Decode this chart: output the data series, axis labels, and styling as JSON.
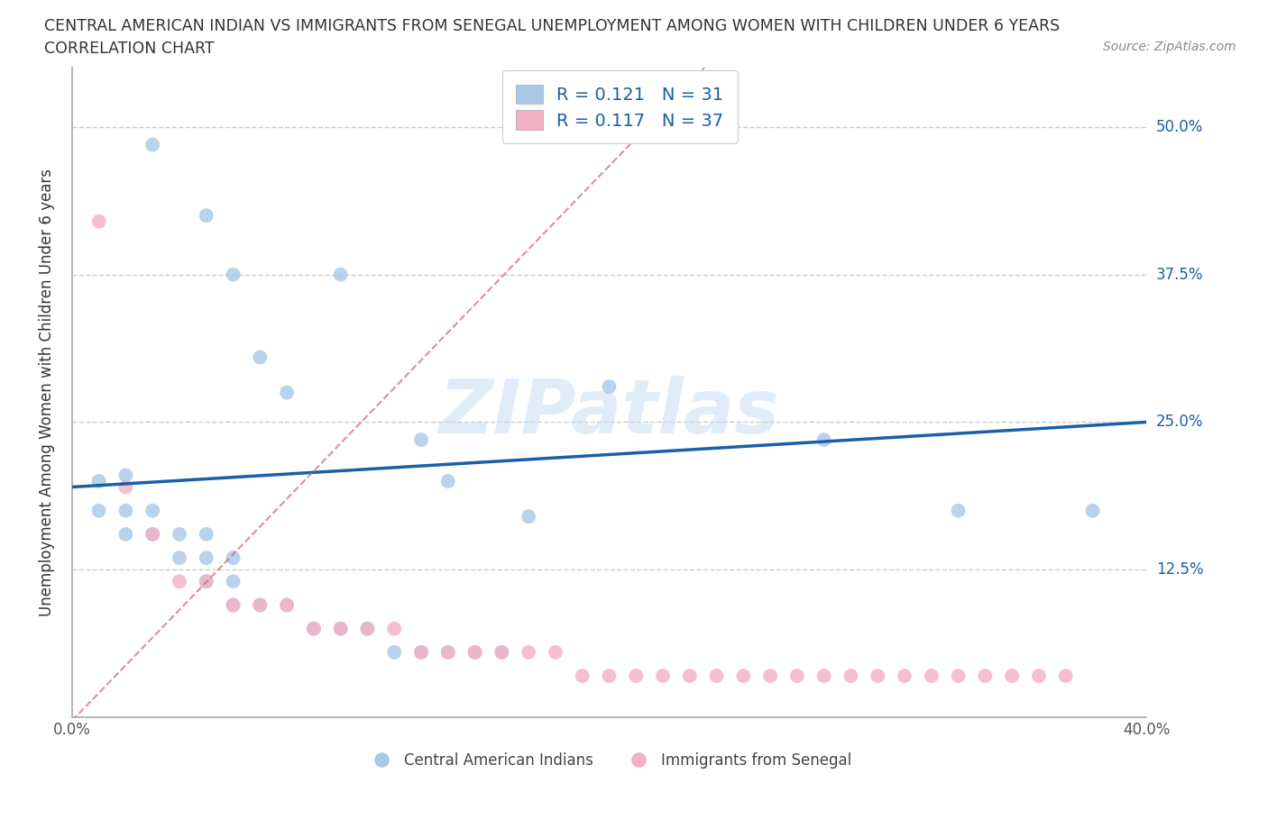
{
  "title_line1": "CENTRAL AMERICAN INDIAN VS IMMIGRANTS FROM SENEGAL UNEMPLOYMENT AMONG WOMEN WITH CHILDREN UNDER 6 YEARS",
  "title_line2": "CORRELATION CHART",
  "source": "Source: ZipAtlas.com",
  "ylabel": "Unemployment Among Women with Children Under 6 years",
  "xlim": [
    0.0,
    0.4
  ],
  "ylim": [
    0.0,
    0.55
  ],
  "yticks": [
    0.0,
    0.125,
    0.25,
    0.375,
    0.5
  ],
  "right_ytick_labels": [
    "50.0%",
    "37.5%",
    "25.0%",
    "12.5%",
    ""
  ],
  "right_ytick_vals": [
    0.5,
    0.375,
    0.25,
    0.125,
    0.0
  ],
  "xticks": [
    0.0,
    0.1,
    0.2,
    0.3,
    0.4
  ],
  "xtick_labels": [
    "0.0%",
    "",
    "",
    "",
    "40.0%"
  ],
  "blue_R": 0.121,
  "blue_N": 31,
  "pink_R": 0.117,
  "pink_N": 37,
  "blue_color": "#a8c8e8",
  "pink_color": "#f4b0c4",
  "blue_line_color": "#1a5fa8",
  "pink_line_color": "#d06070",
  "watermark_color": "#c8dff5",
  "watermark_text": "ZIPatlas",
  "grid_color": "#cccccc",
  "background_color": "#ffffff",
  "marker_size": 130,
  "blue_scatter_x": [
    0.03,
    0.05,
    0.06,
    0.07,
    0.08,
    0.1,
    0.13,
    0.14,
    0.17,
    0.2,
    0.28,
    0.33,
    0.38
  ],
  "blue_scatter_y": [
    0.485,
    0.425,
    0.375,
    0.305,
    0.275,
    0.375,
    0.235,
    0.2,
    0.17,
    0.28,
    0.235,
    0.175,
    0.175
  ],
  "blue_scatter_x_dense": [
    0.01,
    0.01,
    0.02,
    0.02,
    0.02,
    0.03,
    0.03,
    0.04,
    0.04,
    0.05,
    0.05,
    0.05,
    0.06,
    0.06,
    0.06,
    0.07,
    0.08,
    0.09,
    0.1,
    0.11,
    0.12,
    0.13,
    0.14,
    0.15,
    0.16
  ],
  "blue_scatter_y_dense": [
    0.2,
    0.175,
    0.205,
    0.175,
    0.155,
    0.175,
    0.155,
    0.155,
    0.135,
    0.135,
    0.155,
    0.115,
    0.135,
    0.115,
    0.095,
    0.095,
    0.095,
    0.075,
    0.075,
    0.075,
    0.055,
    0.055,
    0.055,
    0.055,
    0.055
  ],
  "pink_scatter_x": [
    0.01,
    0.02,
    0.03,
    0.04,
    0.05,
    0.06,
    0.07,
    0.08,
    0.09,
    0.1,
    0.11,
    0.12,
    0.13,
    0.14,
    0.15,
    0.16,
    0.17,
    0.18,
    0.19,
    0.2,
    0.21,
    0.22,
    0.23,
    0.24,
    0.25,
    0.26,
    0.27,
    0.28,
    0.29,
    0.3,
    0.31,
    0.32,
    0.33,
    0.34,
    0.35,
    0.36,
    0.37
  ],
  "pink_scatter_y": [
    0.42,
    0.195,
    0.155,
    0.115,
    0.115,
    0.095,
    0.095,
    0.095,
    0.075,
    0.075,
    0.075,
    0.075,
    0.055,
    0.055,
    0.055,
    0.055,
    0.055,
    0.055,
    0.035,
    0.035,
    0.035,
    0.035,
    0.035,
    0.035,
    0.035,
    0.035,
    0.035,
    0.035,
    0.035,
    0.035,
    0.035,
    0.035,
    0.035,
    0.035,
    0.035,
    0.035,
    0.035
  ],
  "legend_blue_label": "R = 0.121   N = 31",
  "legend_pink_label": "R = 0.117   N = 37",
  "bottom_legend_blue": "Central American Indians",
  "bottom_legend_pink": "Immigrants from Senegal"
}
